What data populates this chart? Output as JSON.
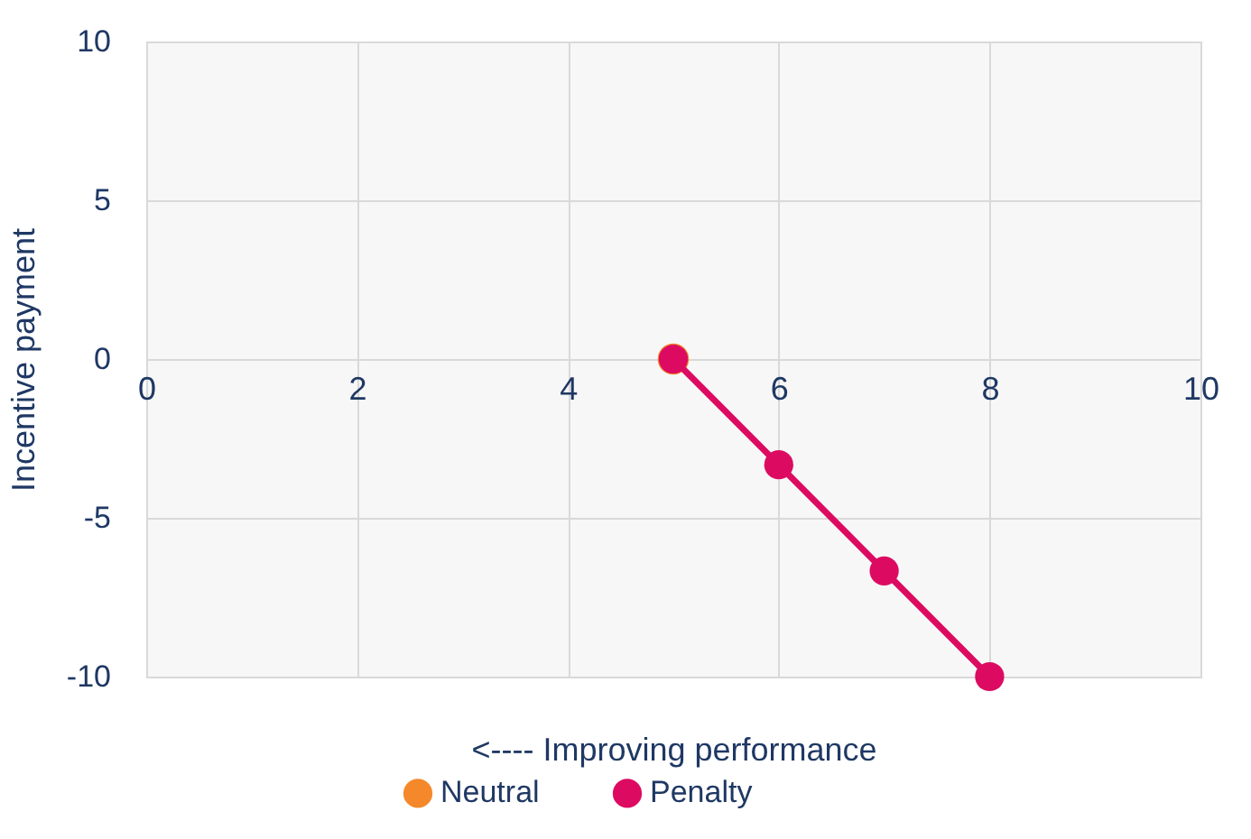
{
  "chart_data": {
    "type": "line",
    "xlabel": "<---- Improving performance",
    "ylabel": "Incentive payment",
    "xlim": [
      0,
      10
    ],
    "xticks": [
      0,
      2,
      4,
      6,
      8,
      10
    ],
    "ylim": [
      -10,
      10
    ],
    "yticks": [
      -10,
      -5,
      0,
      5,
      10
    ],
    "grid": true,
    "legend": "bottom",
    "marker": "circle",
    "series": [
      {
        "name": "Neutral",
        "color": "#f5882a",
        "x": [
          5
        ],
        "values": [
          0
        ]
      },
      {
        "name": "Penalty",
        "color": "#dc0b61",
        "x": [
          5,
          6,
          7,
          8
        ],
        "values": [
          0,
          -3.33,
          -6.67,
          -10
        ]
      }
    ]
  }
}
